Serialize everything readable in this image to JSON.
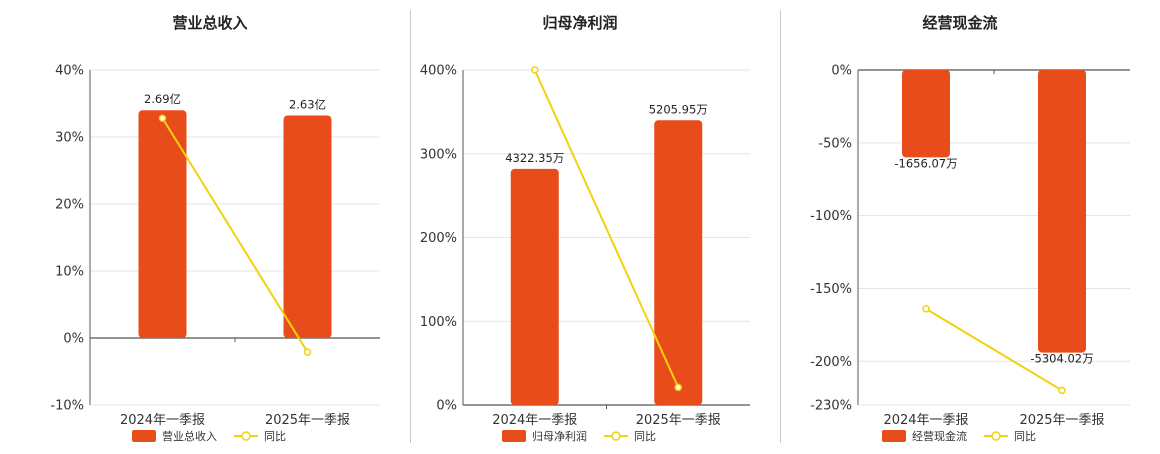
{
  "colors": {
    "bar": "#E84C1B",
    "line": "#F2D20C",
    "grid": "#e6e6e6",
    "axis": "#555555"
  },
  "chart_data": [
    {
      "type": "bar",
      "title": "营业总收入",
      "categories": [
        "2024年一季报",
        "2025年一季报"
      ],
      "ylim": [
        -10,
        40
      ],
      "ytick_values": [
        -10,
        0,
        10,
        20,
        30,
        40
      ],
      "ytick_labels": [
        "-10%",
        "0%",
        "10%",
        "20%",
        "30%",
        "40%"
      ],
      "grid": true,
      "series": [
        {
          "name": "营业总收入",
          "kind": "bar",
          "values": [
            34,
            33.2
          ],
          "data_labels": [
            "2.69亿",
            "2.63亿"
          ]
        },
        {
          "name": "同比",
          "kind": "line",
          "values": [
            32.8,
            -2.1
          ]
        }
      ],
      "legend": {
        "position": "bottom",
        "items": [
          "营业总收入",
          "同比"
        ]
      }
    },
    {
      "type": "bar",
      "title": "归母净利润",
      "categories": [
        "2024年一季报",
        "2025年一季报"
      ],
      "ylim": [
        0,
        400
      ],
      "ytick_values": [
        0,
        100,
        200,
        300,
        400
      ],
      "ytick_labels": [
        "0%",
        "100%",
        "200%",
        "300%",
        "400%"
      ],
      "grid": true,
      "series": [
        {
          "name": "归母净利润",
          "kind": "bar",
          "values": [
            282,
            340
          ],
          "data_labels": [
            "4322.35万",
            "5205.95万"
          ]
        },
        {
          "name": "同比",
          "kind": "line",
          "values": [
            400,
            21
          ]
        }
      ],
      "legend": {
        "position": "bottom",
        "items": [
          "归母净利润",
          "同比"
        ]
      }
    },
    {
      "type": "bar",
      "title": "经营现金流",
      "categories": [
        "2024年一季报",
        "2025年一季报"
      ],
      "ylim": [
        -230,
        0
      ],
      "ytick_values": [
        -230,
        -200,
        -150,
        -100,
        -50,
        0
      ],
      "ytick_labels": [
        "-230%",
        "-200%",
        "-150%",
        "-100%",
        "-50%",
        "0%"
      ],
      "grid": true,
      "series": [
        {
          "name": "经营现金流",
          "kind": "bar",
          "values": [
            -60,
            -194
          ],
          "data_labels": [
            "-1656.07万",
            "-5304.02万"
          ]
        },
        {
          "name": "同比",
          "kind": "line",
          "values": [
            -164,
            -220
          ]
        }
      ],
      "legend": {
        "position": "bottom",
        "items": [
          "经营现金流",
          "同比"
        ]
      }
    }
  ]
}
